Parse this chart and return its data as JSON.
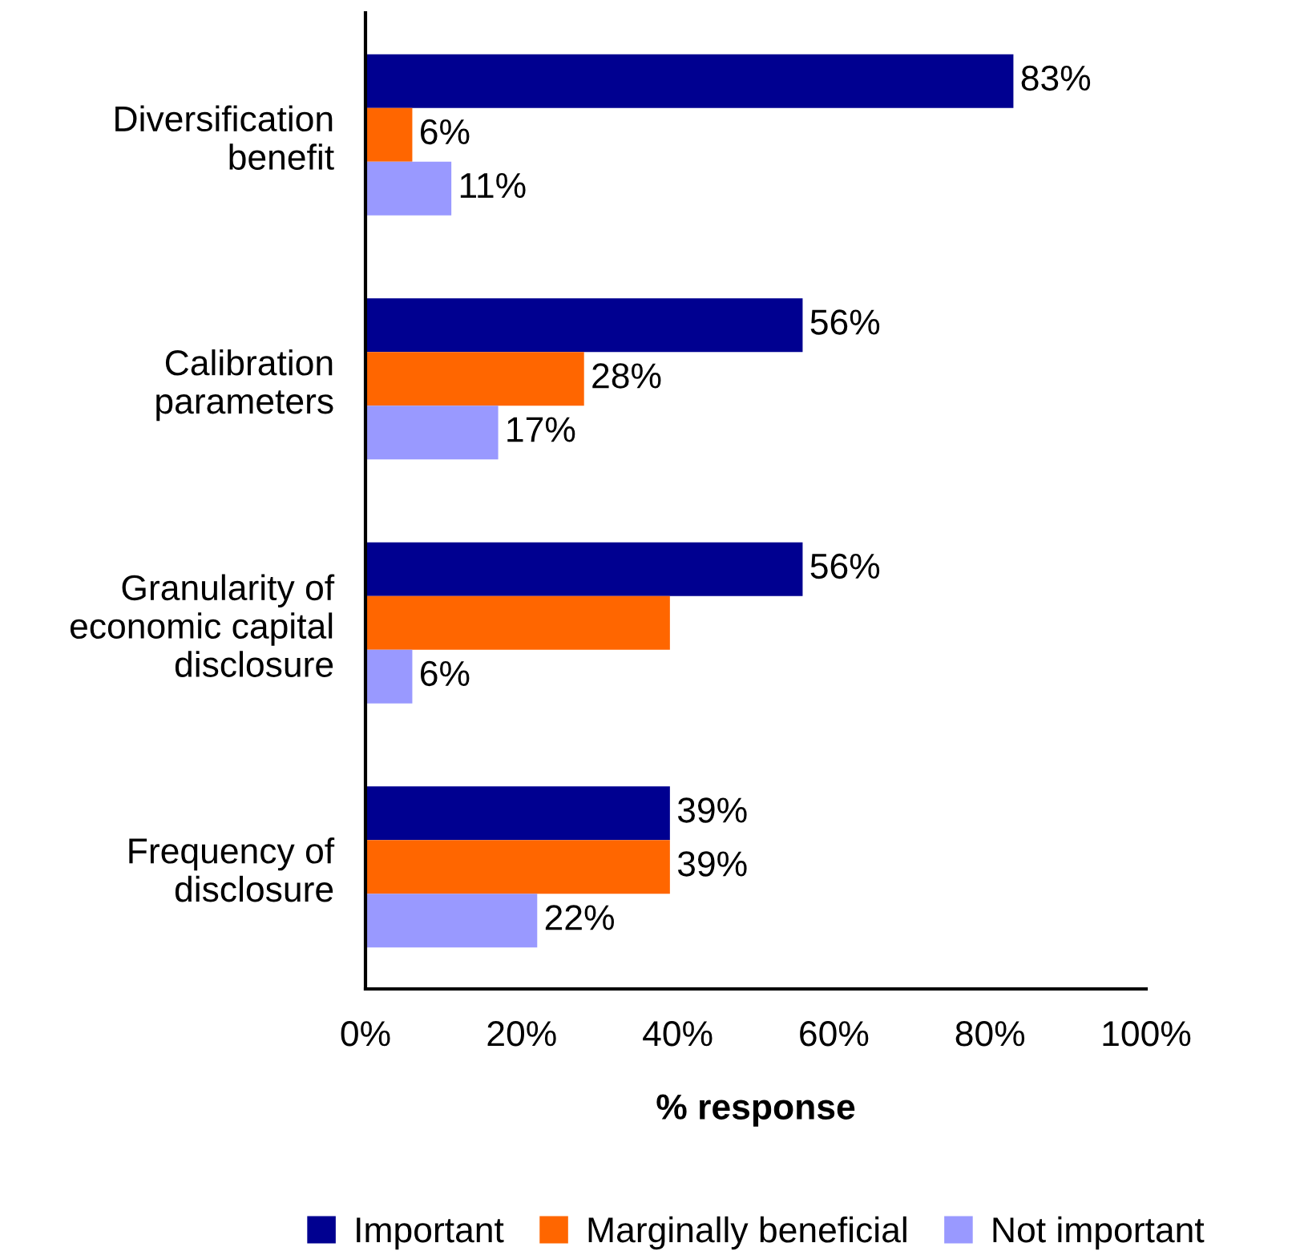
{
  "chart_data": {
    "type": "bar",
    "orientation": "horizontal",
    "xlabel": "% response",
    "categories": [
      "Diversification\nbenefit",
      "Calibration\nparameters",
      "Granularity of\neconomic capital\ndisclosure",
      "Frequency of\ndisclosure"
    ],
    "series": [
      {
        "name": "Important",
        "color": "#000090",
        "values": [
          83,
          56,
          56,
          39
        ],
        "value_labels": [
          "83%",
          "56%",
          "56%",
          "39%"
        ]
      },
      {
        "name": "Marginally beneficial",
        "color": "#ff6600",
        "values": [
          6,
          28,
          39,
          39
        ],
        "value_labels": [
          "6%",
          "28%",
          null,
          "39%"
        ]
      },
      {
        "name": "Not important",
        "color": "#9999ff",
        "values": [
          11,
          17,
          6,
          22
        ],
        "value_labels": [
          "11%",
          "17%",
          "6%",
          "22%"
        ]
      }
    ],
    "xlim": [
      0,
      100
    ],
    "xticks": [
      {
        "value": 0,
        "label": "0%"
      },
      {
        "value": 20,
        "label": "20%"
      },
      {
        "value": 40,
        "label": "40%"
      },
      {
        "value": 60,
        "label": "60%"
      },
      {
        "value": 80,
        "label": "80%"
      },
      {
        "value": 100,
        "label": "100%"
      }
    ],
    "grid": false,
    "legend": "bottom"
  }
}
